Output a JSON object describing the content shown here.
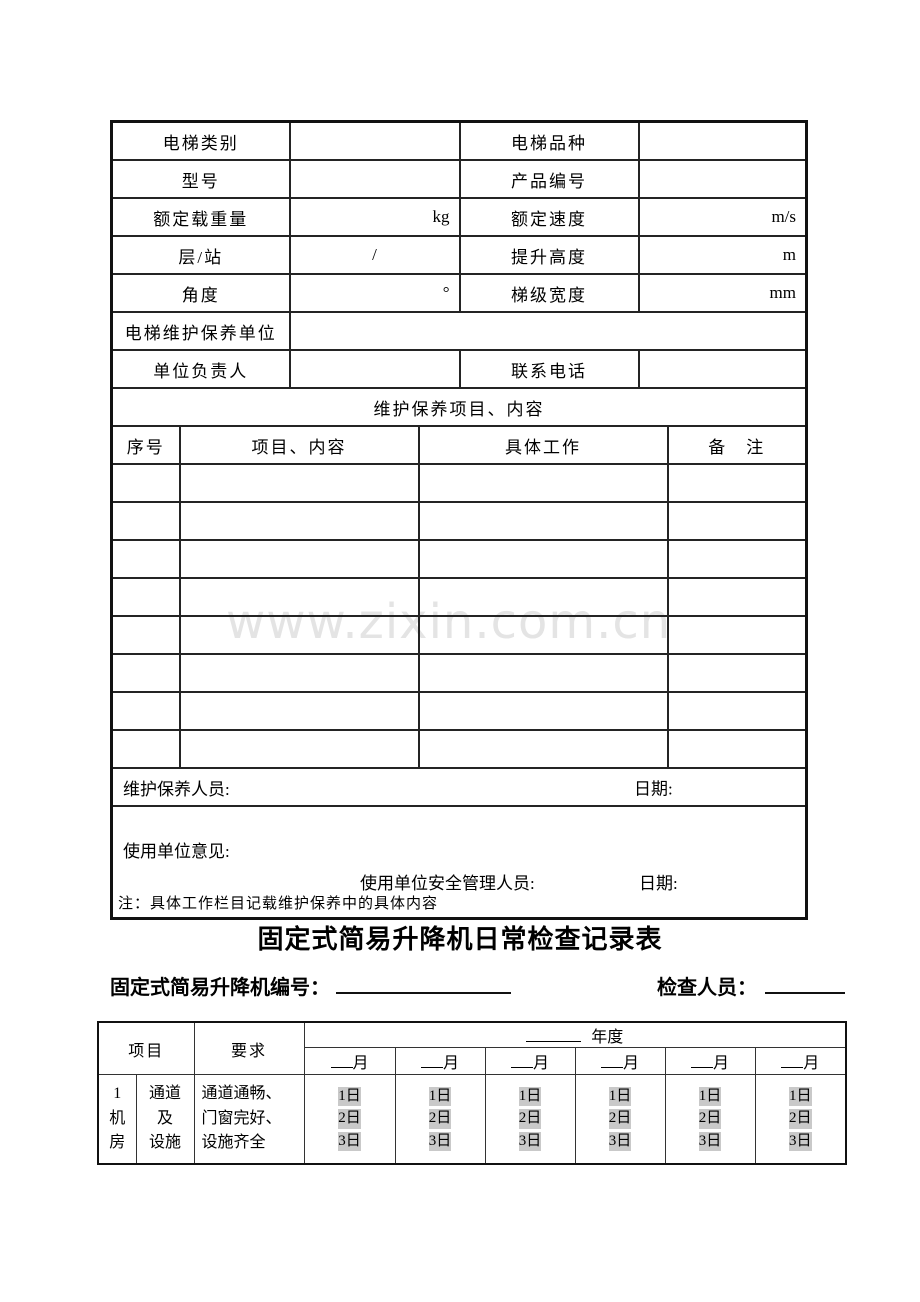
{
  "watermark": "www.zixin.com.cn",
  "colors": {
    "form_field_bg": "#c9c9c9",
    "watermark_gray": "#e4e4e4",
    "border_dark": "#111111"
  },
  "maintenance_table": {
    "spec_rows": [
      {
        "label1": "电梯类别",
        "value1": "",
        "label2": "电梯品种",
        "value2": ""
      },
      {
        "label1": "型号",
        "value1": "",
        "label2": "产品编号",
        "value2": ""
      },
      {
        "label1": "额定载重量",
        "value1": "kg",
        "label2": "额定速度",
        "value2": "m/s"
      },
      {
        "label1": "层/站",
        "value1": "/",
        "label2": "提升高度",
        "value2": "m"
      },
      {
        "label1": "角度",
        "value1": "°",
        "label2": "梯级宽度",
        "value2": "mm"
      }
    ],
    "maintain_unit_label": "电梯维护保养单位",
    "unit_head_label": "单位负责人",
    "phone_label": "联系电话",
    "section_header": "维护保养项目、内容",
    "detail_headers": {
      "seq": "序号",
      "item": "项目、内容",
      "work": "具体工作",
      "remark": "备　注"
    },
    "empty_row_count": 8,
    "staff_label": "维护保养人员:",
    "staff_date_label": "日期:",
    "opinion_label": "使用单位意见:",
    "safety_manager_label": "使用单位安全管理人员:",
    "safety_date_label": "日期:"
  },
  "note": "注：具体工作栏目记载维护保养中的具体内容",
  "daily_check": {
    "title": "固定式简易升降机日常检查记录表",
    "serial_label": "固定式简易升降机编号：",
    "inspector_label": "检查人员：",
    "table": {
      "item_header": "项目",
      "requirement_header": "要求",
      "year_suffix": "年度",
      "month_suffix": "月",
      "month_count": 6,
      "row": {
        "seq_lines": [
          "1",
          "机",
          "房"
        ],
        "item_lines": [
          "通道",
          "及",
          "设施"
        ],
        "requirement": "通道通畅、门窗完好、设施齐全",
        "day_fields": [
          "1日",
          "2日",
          "3日"
        ]
      }
    }
  }
}
